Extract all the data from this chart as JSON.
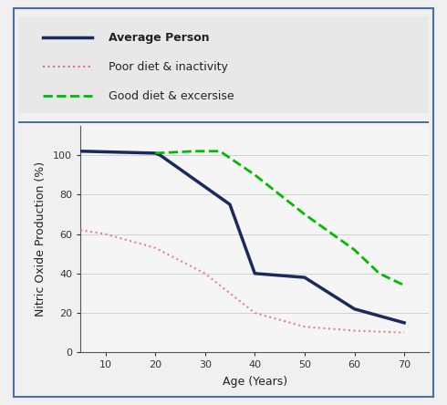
{
  "avg_x": [
    5,
    20,
    21,
    35,
    40,
    50,
    60,
    70
  ],
  "avg_y": [
    102,
    101,
    100,
    75,
    40,
    38,
    22,
    15
  ],
  "poor_x": [
    5,
    10,
    20,
    30,
    40,
    50,
    60,
    70
  ],
  "poor_y": [
    62,
    60,
    53,
    40,
    20,
    13,
    11,
    10
  ],
  "good_x": [
    20,
    28,
    33,
    40,
    50,
    60,
    65,
    70
  ],
  "good_y": [
    101,
    102,
    102,
    90,
    70,
    52,
    40,
    34
  ],
  "avg_color": "#1a2a5e",
  "poor_color": "#e07070",
  "good_color": "#00bb00",
  "xlabel": "Age (Years)",
  "ylabel": "Nitric Oxide Production (%)",
  "legend_labels": [
    "Average Person",
    "Poor diet & inactivity",
    "Good diet & excersise"
  ],
  "xlim": [
    5,
    75
  ],
  "ylim": [
    0,
    115
  ],
  "xticks": [
    10,
    20,
    30,
    40,
    50,
    60,
    70
  ],
  "yticks": [
    0,
    20,
    40,
    60,
    80,
    100
  ],
  "grid_color": "#cccccc",
  "bg_legend": "#e8e8e8",
  "bg_plot": "#f5f5f5",
  "outer_box_color": "#4a6fa5",
  "fig_bg": "#f0f0f0"
}
